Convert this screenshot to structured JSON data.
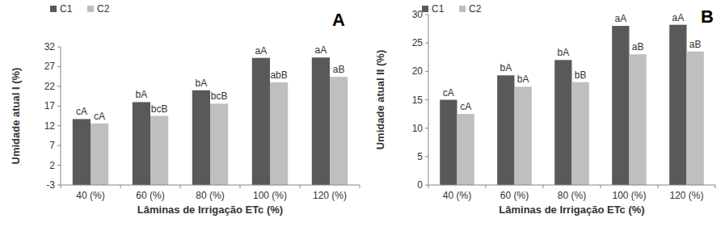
{
  "chart_data": [
    {
      "type": "bar",
      "title": "A",
      "x_label": "Lâminas de Irrigação ETc (%)",
      "y_label": "Umidade atual I (%)",
      "categories": [
        "40 (%)",
        "60 (%)",
        "80 (%)",
        "100 (%)",
        "120 (%)"
      ],
      "series": [
        {
          "name": "C1",
          "color": "#595959",
          "values": [
            13.7,
            18,
            21,
            29.2,
            29.3
          ],
          "annotations": [
            "cA",
            "bA",
            "bA",
            "aA",
            "aA"
          ]
        },
        {
          "name": "C2",
          "color": "#bfbfbf",
          "values": [
            12.6,
            14.5,
            17.6,
            23,
            24.4
          ],
          "annotations": [
            "cA",
            "bcB",
            "bcB",
            "abB",
            "aB"
          ]
        }
      ],
      "ylim": [
        -3,
        32
      ],
      "yticks": [
        -3,
        2,
        7,
        12,
        17,
        22,
        27,
        32
      ],
      "grid": false,
      "legend": "upper left"
    },
    {
      "type": "bar",
      "title": "B",
      "x_label": "Lâminas de Irrigação ETc (%)",
      "y_label": "Umidade atual II (%)",
      "categories": [
        "40 (%)",
        "60 (%)",
        "80 (%)",
        "100 (%)",
        "120 (%)"
      ],
      "series": [
        {
          "name": "C1",
          "color": "#595959",
          "values": [
            15,
            19.3,
            22,
            28,
            28.2
          ],
          "annotations": [
            "cA",
            "bA",
            "bA",
            "aA",
            "aA"
          ]
        },
        {
          "name": "C2",
          "color": "#bfbfbf",
          "values": [
            12.5,
            17.3,
            18.1,
            23,
            23.5
          ],
          "annotations": [
            "cA",
            "bA",
            "bB",
            "aB",
            "aB"
          ]
        }
      ],
      "ylim": [
        0,
        30
      ],
      "yticks": [
        0,
        5,
        10,
        15,
        20,
        25,
        30
      ],
      "grid": false,
      "legend": "upper left"
    }
  ]
}
